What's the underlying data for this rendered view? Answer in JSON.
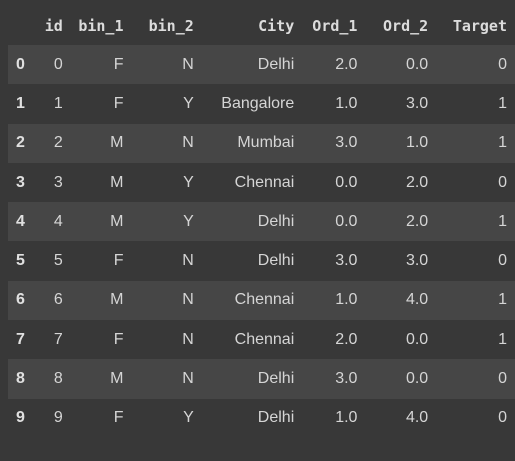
{
  "dataframe": {
    "columns": [
      "id",
      "bin_1",
      "bin_2",
      "City",
      "Ord_1",
      "Ord_2",
      "Target"
    ],
    "index": [
      "0",
      "1",
      "2",
      "3",
      "4",
      "5",
      "6",
      "7",
      "8",
      "9"
    ],
    "rows": [
      [
        "0",
        "F",
        "N",
        "Delhi",
        "2.0",
        "0.0",
        "0"
      ],
      [
        "1",
        "F",
        "Y",
        "Bangalore",
        "1.0",
        "3.0",
        "1"
      ],
      [
        "2",
        "M",
        "N",
        "Mumbai",
        "3.0",
        "1.0",
        "1"
      ],
      [
        "3",
        "M",
        "Y",
        "Chennai",
        "0.0",
        "2.0",
        "0"
      ],
      [
        "4",
        "M",
        "Y",
        "Delhi",
        "0.0",
        "2.0",
        "1"
      ],
      [
        "5",
        "F",
        "N",
        "Delhi",
        "3.0",
        "3.0",
        "0"
      ],
      [
        "6",
        "M",
        "N",
        "Chennai",
        "1.0",
        "4.0",
        "1"
      ],
      [
        "7",
        "F",
        "N",
        "Chennai",
        "2.0",
        "0.0",
        "1"
      ],
      [
        "8",
        "M",
        "N",
        "Delhi",
        "3.0",
        "0.0",
        "0"
      ],
      [
        "9",
        "F",
        "Y",
        "Delhi",
        "1.0",
        "4.0",
        "0"
      ]
    ]
  },
  "colors": {
    "background": "#383838",
    "row_stripe": "#464646",
    "text": "#d5d5d5"
  }
}
